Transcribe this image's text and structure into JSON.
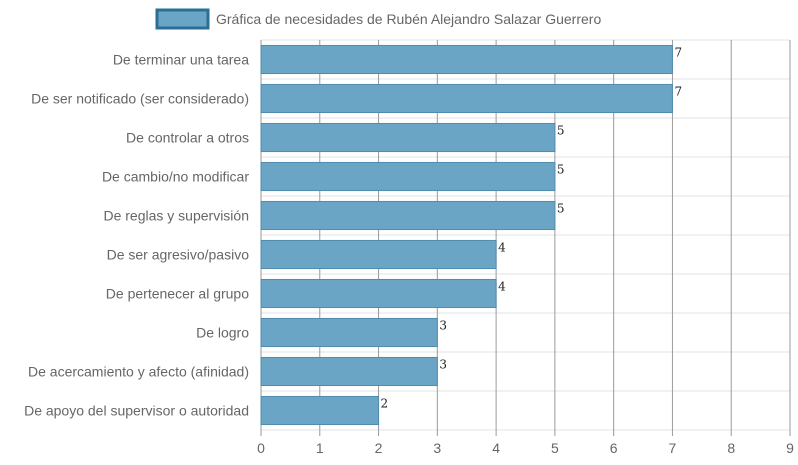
{
  "chart_data": {
    "type": "bar",
    "orientation": "horizontal",
    "legend": {
      "label": "Gráfica de necesidades de Rubén Alejandro Salazar Guerrero",
      "position": "top"
    },
    "categories": [
      "De terminar una tarea",
      "De ser notificado (ser considerado)",
      "De controlar a otros",
      "De cambio/no modificar",
      "De reglas y supervisión",
      "De ser agresivo/pasivo",
      "De pertenecer al grupo",
      "De logro",
      "De acercamiento y afecto (afinidad)",
      "De apoyo del supervisor o autoridad"
    ],
    "values": [
      7,
      7,
      5,
      5,
      5,
      4,
      4,
      3,
      3,
      2
    ],
    "xlim": [
      0,
      9
    ],
    "xticks": [
      "0",
      "1",
      "2",
      "3",
      "4",
      "5",
      "6",
      "7",
      "8",
      "9"
    ],
    "grid": true,
    "colors": {
      "bar_fill": "#6ba5c5",
      "bar_stroke": "#4f8cb0",
      "legend_fill": "#6ba5c5",
      "legend_stroke": "#2b6f96",
      "grid_major": "#9a9a9a",
      "grid_minor": "#e3e3e3"
    }
  }
}
